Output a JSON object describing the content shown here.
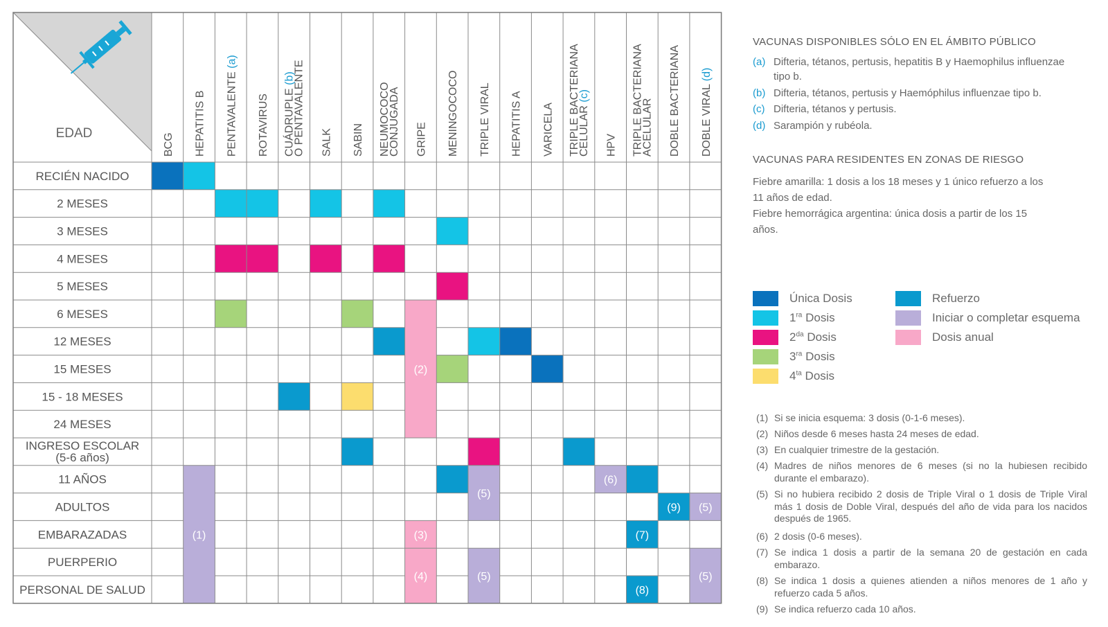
{
  "corner_label": "EDAD",
  "corner_icon": "syringe-icon",
  "columns": [
    {
      "label": "BCG"
    },
    {
      "label": "HEPATITIS B"
    },
    {
      "label": "PENTAVALENTE",
      "tag": "(a)"
    },
    {
      "label": "ROTAVIRUS"
    },
    {
      "label": "CUÁDRUPLE",
      "tag": "(b)",
      "label2": "O PENTAVALENTE"
    },
    {
      "label": "SALK"
    },
    {
      "label": "SABIN"
    },
    {
      "label": "NEUMOCOCO",
      "label2": "CONJUGADA"
    },
    {
      "label": "GRIPE"
    },
    {
      "label": "MENINGOCOCO"
    },
    {
      "label": "TRIPLE VIRAL"
    },
    {
      "label": "HEPATITIS A"
    },
    {
      "label": "VARICELA"
    },
    {
      "label": "TRIPLE BACTERIANA",
      "label2": "CELULAR",
      "tag": "(c)"
    },
    {
      "label": "HPV"
    },
    {
      "label": "TRIPLE BACTERIANA",
      "label2": "ACELULAR"
    },
    {
      "label": "DOBLE BACTERIANA"
    },
    {
      "label": "DOBLE VIRAL",
      "tag": "(d)"
    }
  ],
  "rows": [
    [
      "RECIÉN NACIDO"
    ],
    [
      "2 MESES"
    ],
    [
      "3 MESES"
    ],
    [
      "4 MESES"
    ],
    [
      "5 MESES"
    ],
    [
      "6 MESES"
    ],
    [
      "12 MESES"
    ],
    [
      "15 MESES"
    ],
    [
      "15 - 18 MESES"
    ],
    [
      "24 MESES"
    ],
    [
      "INGRESO ESCOLAR",
      "(5-6 años)"
    ],
    [
      "11 AÑOS"
    ],
    [
      "ADULTOS"
    ],
    [
      "EMBARAZADAS"
    ],
    [
      "PUERPERIO"
    ],
    [
      "PERSONAL DE SALUD"
    ]
  ],
  "dose_types": {
    "unica": {
      "label": "Única Dosis",
      "color": "#0a72bd"
    },
    "d1": {
      "label": "1ª Dosis",
      "base": "1",
      "sup": "ra",
      "tail": " Dosis",
      "color": "#14c4e6"
    },
    "d2": {
      "label": "2ª Dosis",
      "base": "2",
      "sup": "da",
      "tail": " Dosis",
      "color": "#e91381"
    },
    "d3": {
      "label": "3ª Dosis",
      "base": "3",
      "sup": "ra",
      "tail": " Dosis",
      "color": "#a6d47a"
    },
    "d4": {
      "label": "4ª Dosis",
      "base": "4",
      "sup": "ta",
      "tail": " Dosis",
      "color": "#fcdd6e"
    },
    "refuerzo": {
      "label": "Refuerzo",
      "color": "#0a9ace"
    },
    "esquema": {
      "label": "Iniciar o completar esquema",
      "color": "#b9aed9"
    },
    "anual": {
      "label": "Dosis anual",
      "color": "#f8a8c8"
    }
  },
  "cells": [
    {
      "row": 0,
      "col": 0,
      "type": "unica"
    },
    {
      "row": 0,
      "col": 1,
      "type": "d1"
    },
    {
      "row": 1,
      "col": 2,
      "type": "d1"
    },
    {
      "row": 1,
      "col": 3,
      "type": "d1"
    },
    {
      "row": 1,
      "col": 5,
      "type": "d1"
    },
    {
      "row": 1,
      "col": 7,
      "type": "d1"
    },
    {
      "row": 2,
      "col": 9,
      "type": "d1"
    },
    {
      "row": 3,
      "col": 2,
      "type": "d2"
    },
    {
      "row": 3,
      "col": 3,
      "type": "d2"
    },
    {
      "row": 3,
      "col": 5,
      "type": "d2"
    },
    {
      "row": 3,
      "col": 7,
      "type": "d2"
    },
    {
      "row": 4,
      "col": 9,
      "type": "d2"
    },
    {
      "row": 5,
      "col": 2,
      "type": "d3"
    },
    {
      "row": 5,
      "col": 6,
      "type": "d3"
    },
    {
      "row": 5,
      "col": 8,
      "type": "anual",
      "rowspan": 5,
      "note": "(2)"
    },
    {
      "row": 6,
      "col": 7,
      "type": "refuerzo"
    },
    {
      "row": 6,
      "col": 10,
      "type": "d1"
    },
    {
      "row": 6,
      "col": 11,
      "type": "unica"
    },
    {
      "row": 7,
      "col": 9,
      "type": "d3"
    },
    {
      "row": 7,
      "col": 12,
      "type": "unica"
    },
    {
      "row": 8,
      "col": 4,
      "type": "refuerzo"
    },
    {
      "row": 8,
      "col": 6,
      "type": "d4"
    },
    {
      "row": 10,
      "col": 6,
      "type": "refuerzo"
    },
    {
      "row": 10,
      "col": 10,
      "type": "d2"
    },
    {
      "row": 10,
      "col": 13,
      "type": "refuerzo"
    },
    {
      "row": 11,
      "col": 1,
      "type": "esquema",
      "rowspan": 5,
      "note": "(1)"
    },
    {
      "row": 11,
      "col": 9,
      "type": "refuerzo"
    },
    {
      "row": 11,
      "col": 10,
      "type": "esquema",
      "rowspan": 2,
      "note": "(5)"
    },
    {
      "row": 11,
      "col": 14,
      "type": "esquema",
      "note": "(6)"
    },
    {
      "row": 11,
      "col": 15,
      "type": "refuerzo"
    },
    {
      "row": 12,
      "col": 16,
      "type": "refuerzo",
      "note": "(9)"
    },
    {
      "row": 12,
      "col": 17,
      "type": "esquema",
      "note": "(5)"
    },
    {
      "row": 13,
      "col": 8,
      "type": "anual",
      "note": "(3)"
    },
    {
      "row": 13,
      "col": 15,
      "type": "refuerzo",
      "note": "(7)"
    },
    {
      "row": 14,
      "col": 8,
      "type": "anual",
      "rowspan": 2,
      "note": "(4)"
    },
    {
      "row": 14,
      "col": 10,
      "type": "esquema",
      "rowspan": 2,
      "note": "(5)"
    },
    {
      "row": 14,
      "col": 17,
      "type": "esquema",
      "rowspan": 2,
      "note": "(5)"
    },
    {
      "row": 15,
      "col": 15,
      "type": "refuerzo",
      "note": "(8)"
    }
  ],
  "public_section": {
    "title": "VACUNAS DISPONIBLES SÓLO EN EL ÁMBITO PÚBLICO",
    "items": [
      {
        "tag": "(a)",
        "text": "Difteria, tétanos, pertusis, hepatitis B y Haemophilus influenzae tipo b."
      },
      {
        "tag": "(b)",
        "text": "Difteria, tétanos, pertusis y Haemóphilus influenzae tipo b."
      },
      {
        "tag": "(c)",
        "text": "Difteria, tétanos y pertusis."
      },
      {
        "tag": "(d)",
        "text": "Sarampión y rubéola."
      }
    ]
  },
  "risk_section": {
    "title": "VACUNAS PARA RESIDENTES EN ZONAS DE RIESGO",
    "paragraphs": [
      "Fiebre amarilla: 1 dosis a los 18 meses y 1 único refuerzo a los 11 años de edad.",
      "Fiebre hemorrágica argentina: única dosis a partir de los 15 años."
    ]
  },
  "footnotes": [
    {
      "n": "(1)",
      "text": "Si se inicia esquema: 3 dosis (0-1-6 meses)."
    },
    {
      "n": "(2)",
      "text": "Niños desde 6 meses hasta 24 meses de edad."
    },
    {
      "n": "(3)",
      "text": "En cualquier trimestre de la gestación."
    },
    {
      "n": "(4)",
      "text": "Madres de niños menores de 6 meses (si no la hubiesen recibido durante el embarazo)."
    },
    {
      "n": "(5)",
      "text": "Si no hubiera recibido 2 dosis de Triple Viral o 1 dosis de Triple Viral más 1 dosis de Doble Viral, después del año de vida para los nacidos después de 1965."
    },
    {
      "n": "(6)",
      "text": "2 dosis (0-6 meses)."
    },
    {
      "n": "(7)",
      "text": "Se indica 1 dosis a partir de la semana 20 de gestación en cada embarazo."
    },
    {
      "n": "(8)",
      "text": "Se indica 1 dosis a quienes atienden a niños menores de 1 año y refuerzo cada 5 años."
    },
    {
      "n": "(9)",
      "text": "Se indica refuerzo cada 10 años."
    }
  ]
}
